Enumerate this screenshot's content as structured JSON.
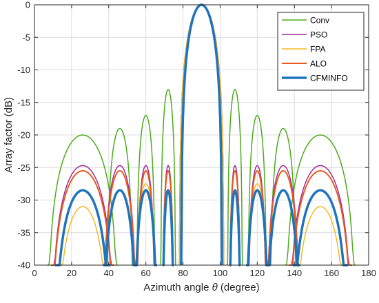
{
  "chart_data": {
    "type": "line",
    "title": "",
    "xlabel": "Azimuth angle θ (degree)",
    "xlabel_parts": {
      "prefix": "Azimuth angle ",
      "symbol": "θ",
      "suffix": " (degree)"
    },
    "ylabel": "Array factor (dB)",
    "xlim": [
      0,
      180
    ],
    "ylim": [
      -40,
      0
    ],
    "xticks": [
      0,
      20,
      40,
      60,
      80,
      100,
      120,
      140,
      160,
      180
    ],
    "yticks": [
      0,
      -5,
      -10,
      -15,
      -20,
      -25,
      -30,
      -35,
      -40
    ],
    "grid": true,
    "legend_position": "top-right",
    "series": [
      {
        "name": "Conv",
        "color": "#4daa1c",
        "width": 1.5,
        "lobes": [
          [
            7,
            26,
            -20,
            45
          ],
          [
            39,
            46,
            -19,
            53
          ],
          [
            55,
            60,
            -17,
            65
          ],
          [
            68,
            72,
            -13,
            76
          ],
          [
            78,
            90,
            0,
            102
          ],
          [
            104,
            108,
            -13,
            112
          ],
          [
            115,
            120,
            -17,
            125
          ],
          [
            127,
            134,
            -19,
            141
          ],
          [
            135,
            154,
            -20,
            173
          ]
        ]
      },
      {
        "name": "PSO",
        "color": "#9b2d96",
        "width": 1.5,
        "lobes": [
          [
            9,
            26,
            -24.7,
            43
          ],
          [
            37,
            46,
            -24.7,
            55
          ],
          [
            55,
            60,
            -24.7,
            65
          ],
          [
            69,
            72,
            -24.7,
            75
          ],
          [
            78,
            90,
            0,
            102
          ],
          [
            105,
            108,
            -24.7,
            111
          ],
          [
            115,
            120,
            -24.7,
            125
          ],
          [
            125,
            134,
            -24.7,
            143
          ],
          [
            137,
            154,
            -24.7,
            171
          ]
        ]
      },
      {
        "name": "FPA",
        "color": "#f5b921",
        "width": 1.5,
        "lobes": [
          [
            12,
            26,
            -31,
            40
          ],
          [
            37,
            46,
            -28.5,
            55
          ],
          [
            54,
            60,
            -27.5,
            66
          ],
          [
            69,
            72,
            -25.5,
            75
          ],
          [
            78,
            90,
            0,
            102
          ],
          [
            105,
            108,
            -25.5,
            111
          ],
          [
            114,
            120,
            -27.5,
            126
          ],
          [
            125,
            134,
            -28.5,
            143
          ],
          [
            140,
            154,
            -31,
            168
          ]
        ]
      },
      {
        "name": "ALO",
        "color": "#e85a20",
        "width": 2,
        "lobes": [
          [
            9,
            26,
            -25.5,
            43
          ],
          [
            37,
            46,
            -25.5,
            55
          ],
          [
            55,
            60,
            -25.5,
            65
          ],
          [
            69,
            72,
            -25.5,
            75
          ],
          [
            79,
            90,
            0,
            101
          ],
          [
            105,
            108,
            -25.5,
            111
          ],
          [
            115,
            120,
            -25.5,
            125
          ],
          [
            125,
            134,
            -25.5,
            143
          ],
          [
            137,
            154,
            -25.5,
            171
          ]
        ]
      },
      {
        "name": "CFMINFO",
        "color": "#1f74bd",
        "width": 3.5,
        "lobes": [
          [
            11,
            26,
            -28.5,
            41
          ],
          [
            37,
            46,
            -28.5,
            55
          ],
          [
            54,
            60,
            -28.5,
            66
          ],
          [
            69,
            72,
            -28.5,
            75
          ],
          [
            79,
            90,
            0,
            101
          ],
          [
            105,
            108,
            -28.5,
            111
          ],
          [
            114,
            120,
            -28.5,
            126
          ],
          [
            125,
            134,
            -28.5,
            143
          ],
          [
            139,
            154,
            -28.5,
            169
          ]
        ]
      }
    ]
  }
}
